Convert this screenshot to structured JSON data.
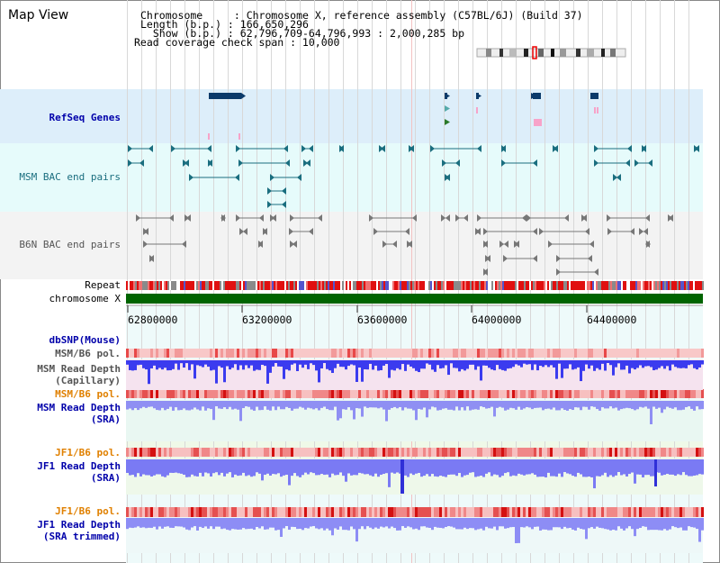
{
  "title": "Map View",
  "info": {
    "line1": "Chromosome     : Chromosome X, reference assembly (C57BL/6J) (Build 37)",
    "line2": "Length (b.p.) : 166,650,296",
    "line3": "  Show (b.p.) : 62,796,709-64,796,993 : 2,000,285 bp",
    "line4": "Read coverage check span : 10,000"
  },
  "tracks": {
    "refseq": "RefSeq Genes",
    "msm_bac": "MSM BAC end pairs",
    "b6n_bac": "B6N BAC end pairs",
    "repeat": "Repeat",
    "chromosome": "chromosome X",
    "dbsnp": "dbSNP(Mouse)",
    "msm_b6_pol_1": "MSM/B6 pol.",
    "msm_depth_cap_1": "MSM Read Depth",
    "msm_depth_cap_2": "(Capillary)",
    "msm_b6_pol_2": "MSM/B6 pol.",
    "msm_depth_sra_1": "MSM Read Depth",
    "msm_depth_sra_2": "(SRA)",
    "jf1_b6_pol_1": "JF1/B6 pol.",
    "jf1_depth_sra_1": "JF1 Read Depth",
    "jf1_depth_sra_2": "(SRA)",
    "jf1_b6_pol_2": "JF1/B6 pol.",
    "jf1_depth_trim_1": "JF1 Read Depth",
    "jf1_depth_trim_2": "(SRA trimmed)"
  },
  "axis_ticks": [
    "62800000",
    "63200000",
    "63600000",
    "64000000",
    "64400000"
  ],
  "colors": {
    "refseq_bg": "#ddeefa",
    "msm_bg": "#e6fbfb",
    "b6n_bg": "#f3f3f3",
    "gene_dark": "#0b3a6a",
    "bac_teal": "#1a6e7f",
    "chromosome": "#006400",
    "label_blue": "#0000aa",
    "label_orange": "#e08000",
    "label_gray": "#555555",
    "depth_blue": "#4a4af0"
  }
}
